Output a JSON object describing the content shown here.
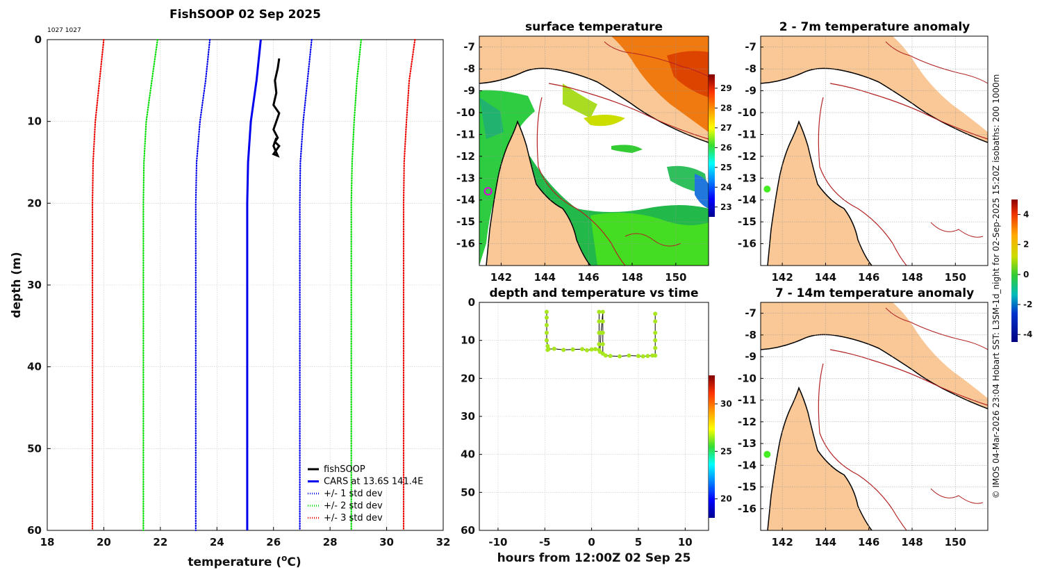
{
  "chart_data": [
    {
      "type": "line",
      "title": "FishSOOP 02 Sep 2025",
      "id_label": "1027 1027",
      "xlabel": "temperature (",
      "xlabel_sup": "o",
      "xlabel_end": "C)",
      "ylabel": "depth (m)",
      "xlim": [
        18,
        32
      ],
      "ylim": [
        0,
        60
      ],
      "xticks": [
        "18",
        "20",
        "22",
        "24",
        "26",
        "28",
        "30",
        "32"
      ],
      "yticks": [
        "0",
        "10",
        "20",
        "30",
        "40",
        "50",
        "60"
      ],
      "series": [
        {
          "name": "fishSOOP",
          "color": "#000000",
          "style": "solid",
          "x": [
            26.2,
            26.15,
            26.05,
            26.1,
            26.0,
            26.2,
            26.1,
            26.0,
            26.15,
            26.05,
            26.2,
            26.1,
            26.0,
            26.15,
            26.0,
            26.1
          ],
          "y": [
            2.3,
            3.5,
            5,
            6.5,
            8,
            9,
            10,
            11,
            12,
            12.5,
            13,
            13.5,
            14,
            14.2,
            13,
            12
          ]
        },
        {
          "name": "CARS at 13.6S 141.4E",
          "color": "#0000ee",
          "style": "solid",
          "x": [
            25.55,
            25.4,
            25.2,
            25.1,
            25.07,
            25.07
          ],
          "y": [
            0,
            5,
            10,
            15,
            20,
            60
          ]
        },
        {
          "name": "+/- 1 std dev",
          "color": "#0000ee",
          "style": "dotted",
          "x": [
            27.35,
            27.2,
            27.05,
            26.95,
            26.93,
            26.93
          ],
          "y": [
            0,
            5,
            10,
            15,
            20,
            60
          ]
        },
        {
          "name": "",
          "color": "#0000ee",
          "style": "dotted",
          "x": [
            23.75,
            23.6,
            23.4,
            23.28,
            23.25,
            23.25
          ],
          "y": [
            0,
            5,
            10,
            15,
            20,
            60
          ]
        },
        {
          "name": "+/- 2 std dev",
          "color": "#00dd00",
          "style": "dotted",
          "x": [
            29.1,
            28.95,
            28.85,
            28.78,
            28.75,
            28.75
          ],
          "y": [
            0,
            5,
            10,
            15,
            20,
            60
          ]
        },
        {
          "name": "",
          "color": "#00dd00",
          "style": "dotted",
          "x": [
            21.9,
            21.7,
            21.5,
            21.42,
            21.4,
            21.4
          ],
          "y": [
            0,
            5,
            10,
            15,
            20,
            60
          ]
        },
        {
          "name": "+/- 3 std dev",
          "color": "#ee0000",
          "style": "dotted",
          "x": [
            31.0,
            30.8,
            30.7,
            30.62,
            30.6,
            30.6
          ],
          "y": [
            0,
            5,
            10,
            15,
            20,
            60
          ]
        },
        {
          "name": "",
          "color": "#ee0000",
          "style": "dotted",
          "x": [
            20.0,
            19.85,
            19.7,
            19.62,
            19.6,
            19.6
          ],
          "y": [
            0,
            5,
            10,
            15,
            20,
            60
          ]
        }
      ]
    },
    {
      "type": "heatmap",
      "title": "surface temperature",
      "xlim": [
        141,
        151.5
      ],
      "ylim": [
        -17,
        -6.5
      ],
      "xticks": [
        "142",
        "144",
        "146",
        "148",
        "150"
      ],
      "yticks": [
        "-7",
        "-8",
        "-9",
        "-10",
        "-11",
        "-12",
        "-13",
        "-14",
        "-15",
        "-16"
      ],
      "colorbar": {
        "range": [
          22.5,
          29.7
        ],
        "ticks": [
          "23",
          "24",
          "25",
          "26",
          "27",
          "28",
          "29"
        ]
      },
      "marker": {
        "lon": 141.4,
        "lat": -13.6,
        "color": "#dd00dd",
        "shape": "circle"
      }
    },
    {
      "type": "scatter",
      "title": "depth and temperature vs time",
      "xlabel": "hours from 12:00Z 02 Sep 25",
      "xlim": [
        -12,
        12.5
      ],
      "ylim": [
        0,
        60
      ],
      "xticks": [
        "-10",
        "-5",
        "0",
        "5",
        "10"
      ],
      "yticks": [
        "0",
        "10",
        "20",
        "30",
        "40",
        "50",
        "60"
      ],
      "colorbar": {
        "range": [
          18,
          33
        ],
        "ticks": [
          "20",
          "25",
          "30"
        ]
      },
      "points_color": "#a8e61d",
      "segments": [
        {
          "x": [
            -4.8,
            -4.8,
            -4.8,
            -4.8,
            -4.8,
            -4.7,
            -4.7
          ],
          "y": [
            2.5,
            4,
            6,
            8,
            10,
            11.5,
            12.5
          ]
        },
        {
          "x": [
            -4.6,
            -4,
            -3,
            -2,
            -1,
            -0.5,
            0,
            0.4
          ],
          "y": [
            12.3,
            12.2,
            12.5,
            12.4,
            12.3,
            12.6,
            12.4,
            12.3
          ]
        },
        {
          "x": [
            0.8,
            0.8,
            0.8,
            0.8,
            0.8,
            0.9,
            1.0,
            1.2,
            1.2,
            1.2,
            1.2,
            1.2
          ],
          "y": [
            2.5,
            5,
            8,
            11,
            12.5,
            13,
            8,
            2.5,
            5,
            8,
            11,
            13.5
          ]
        },
        {
          "x": [
            1.5,
            2,
            3,
            4,
            5,
            5.5,
            6,
            6.5
          ],
          "y": [
            14,
            14.1,
            14.2,
            14,
            14.1,
            14.2,
            14.1,
            14
          ]
        },
        {
          "x": [
            6.8,
            6.8,
            6.8,
            6.8,
            6.8,
            6.8
          ],
          "y": [
            3,
            5,
            8,
            10,
            12,
            14
          ]
        }
      ]
    },
    {
      "type": "heatmap",
      "title": "2 - 7m temperature anomaly",
      "xlim": [
        141,
        151.5
      ],
      "ylim": [
        -17,
        -6.5
      ],
      "xticks": [
        "142",
        "144",
        "146",
        "148",
        "150"
      ],
      "yticks": [
        "-7",
        "-8",
        "-9",
        "-10",
        "-11",
        "-12",
        "-13",
        "-14",
        "-15",
        "-16"
      ],
      "marker": {
        "lon": 141.3,
        "lat": -13.5,
        "color": "#44ee22",
        "shape": "dot"
      }
    },
    {
      "type": "heatmap",
      "title": "7 - 14m temperature anomaly",
      "xlim": [
        141,
        151.5
      ],
      "ylim": [
        -17,
        -6.5
      ],
      "xticks": [
        "142",
        "144",
        "146",
        "148",
        "150"
      ],
      "yticks": [
        "-7",
        "-8",
        "-9",
        "-10",
        "-11",
        "-12",
        "-13",
        "-14",
        "-15",
        "-16"
      ],
      "marker": {
        "lon": 141.3,
        "lat": -13.5,
        "color": "#44ee22",
        "shape": "dot"
      }
    }
  ],
  "anomaly_colorbar": {
    "range": [
      -4.5,
      5
    ],
    "ticks": [
      "4",
      "2",
      "0",
      "-2",
      "-4"
    ]
  },
  "side_note": "© IMOS 04-Mar-2026 23:04 Hobart SST: L3SM-1d_night for 02-Sep-2025 15:20Z isobaths: 200  1000m",
  "colors": {
    "land": "#f9c896",
    "isobath": "#b22222",
    "grid": "#c8c8c8"
  }
}
